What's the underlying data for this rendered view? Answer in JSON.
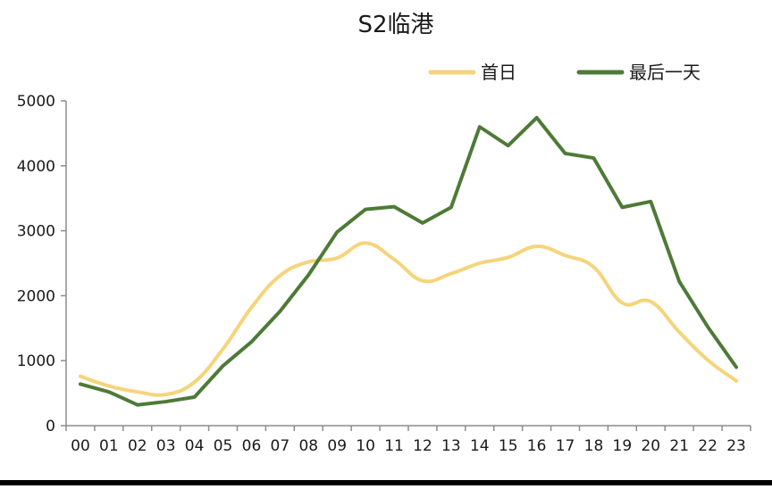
{
  "chart_data": {
    "type": "line",
    "title": "S2临港",
    "xlabel": "",
    "ylabel": "",
    "categories": [
      "00",
      "01",
      "02",
      "03",
      "04",
      "05",
      "06",
      "07",
      "08",
      "09",
      "10",
      "11",
      "12",
      "13",
      "14",
      "15",
      "16",
      "17",
      "18",
      "19",
      "20",
      "21",
      "22",
      "23"
    ],
    "ylim": [
      0,
      5000
    ],
    "yticks": [
      0,
      1000,
      2000,
      3000,
      4000,
      5000
    ],
    "grid": false,
    "legend_position": "top-right",
    "series": [
      {
        "name": "首日",
        "color": "#f5d47a",
        "smooth": true,
        "values": [
          760,
          610,
          520,
          480,
          670,
          1180,
          1820,
          2310,
          2520,
          2580,
          2810,
          2560,
          2230,
          2340,
          2500,
          2590,
          2760,
          2620,
          2440,
          1890,
          1910,
          1440,
          1010,
          690
        ]
      },
      {
        "name": "最后一天",
        "color": "#4e7a37",
        "smooth": false,
        "values": [
          640,
          520,
          320,
          370,
          440,
          920,
          1290,
          1760,
          2320,
          2980,
          3330,
          3370,
          3120,
          3360,
          4600,
          4310,
          4740,
          4190,
          4120,
          3360,
          3450,
          2220,
          1520,
          900
        ]
      }
    ]
  }
}
